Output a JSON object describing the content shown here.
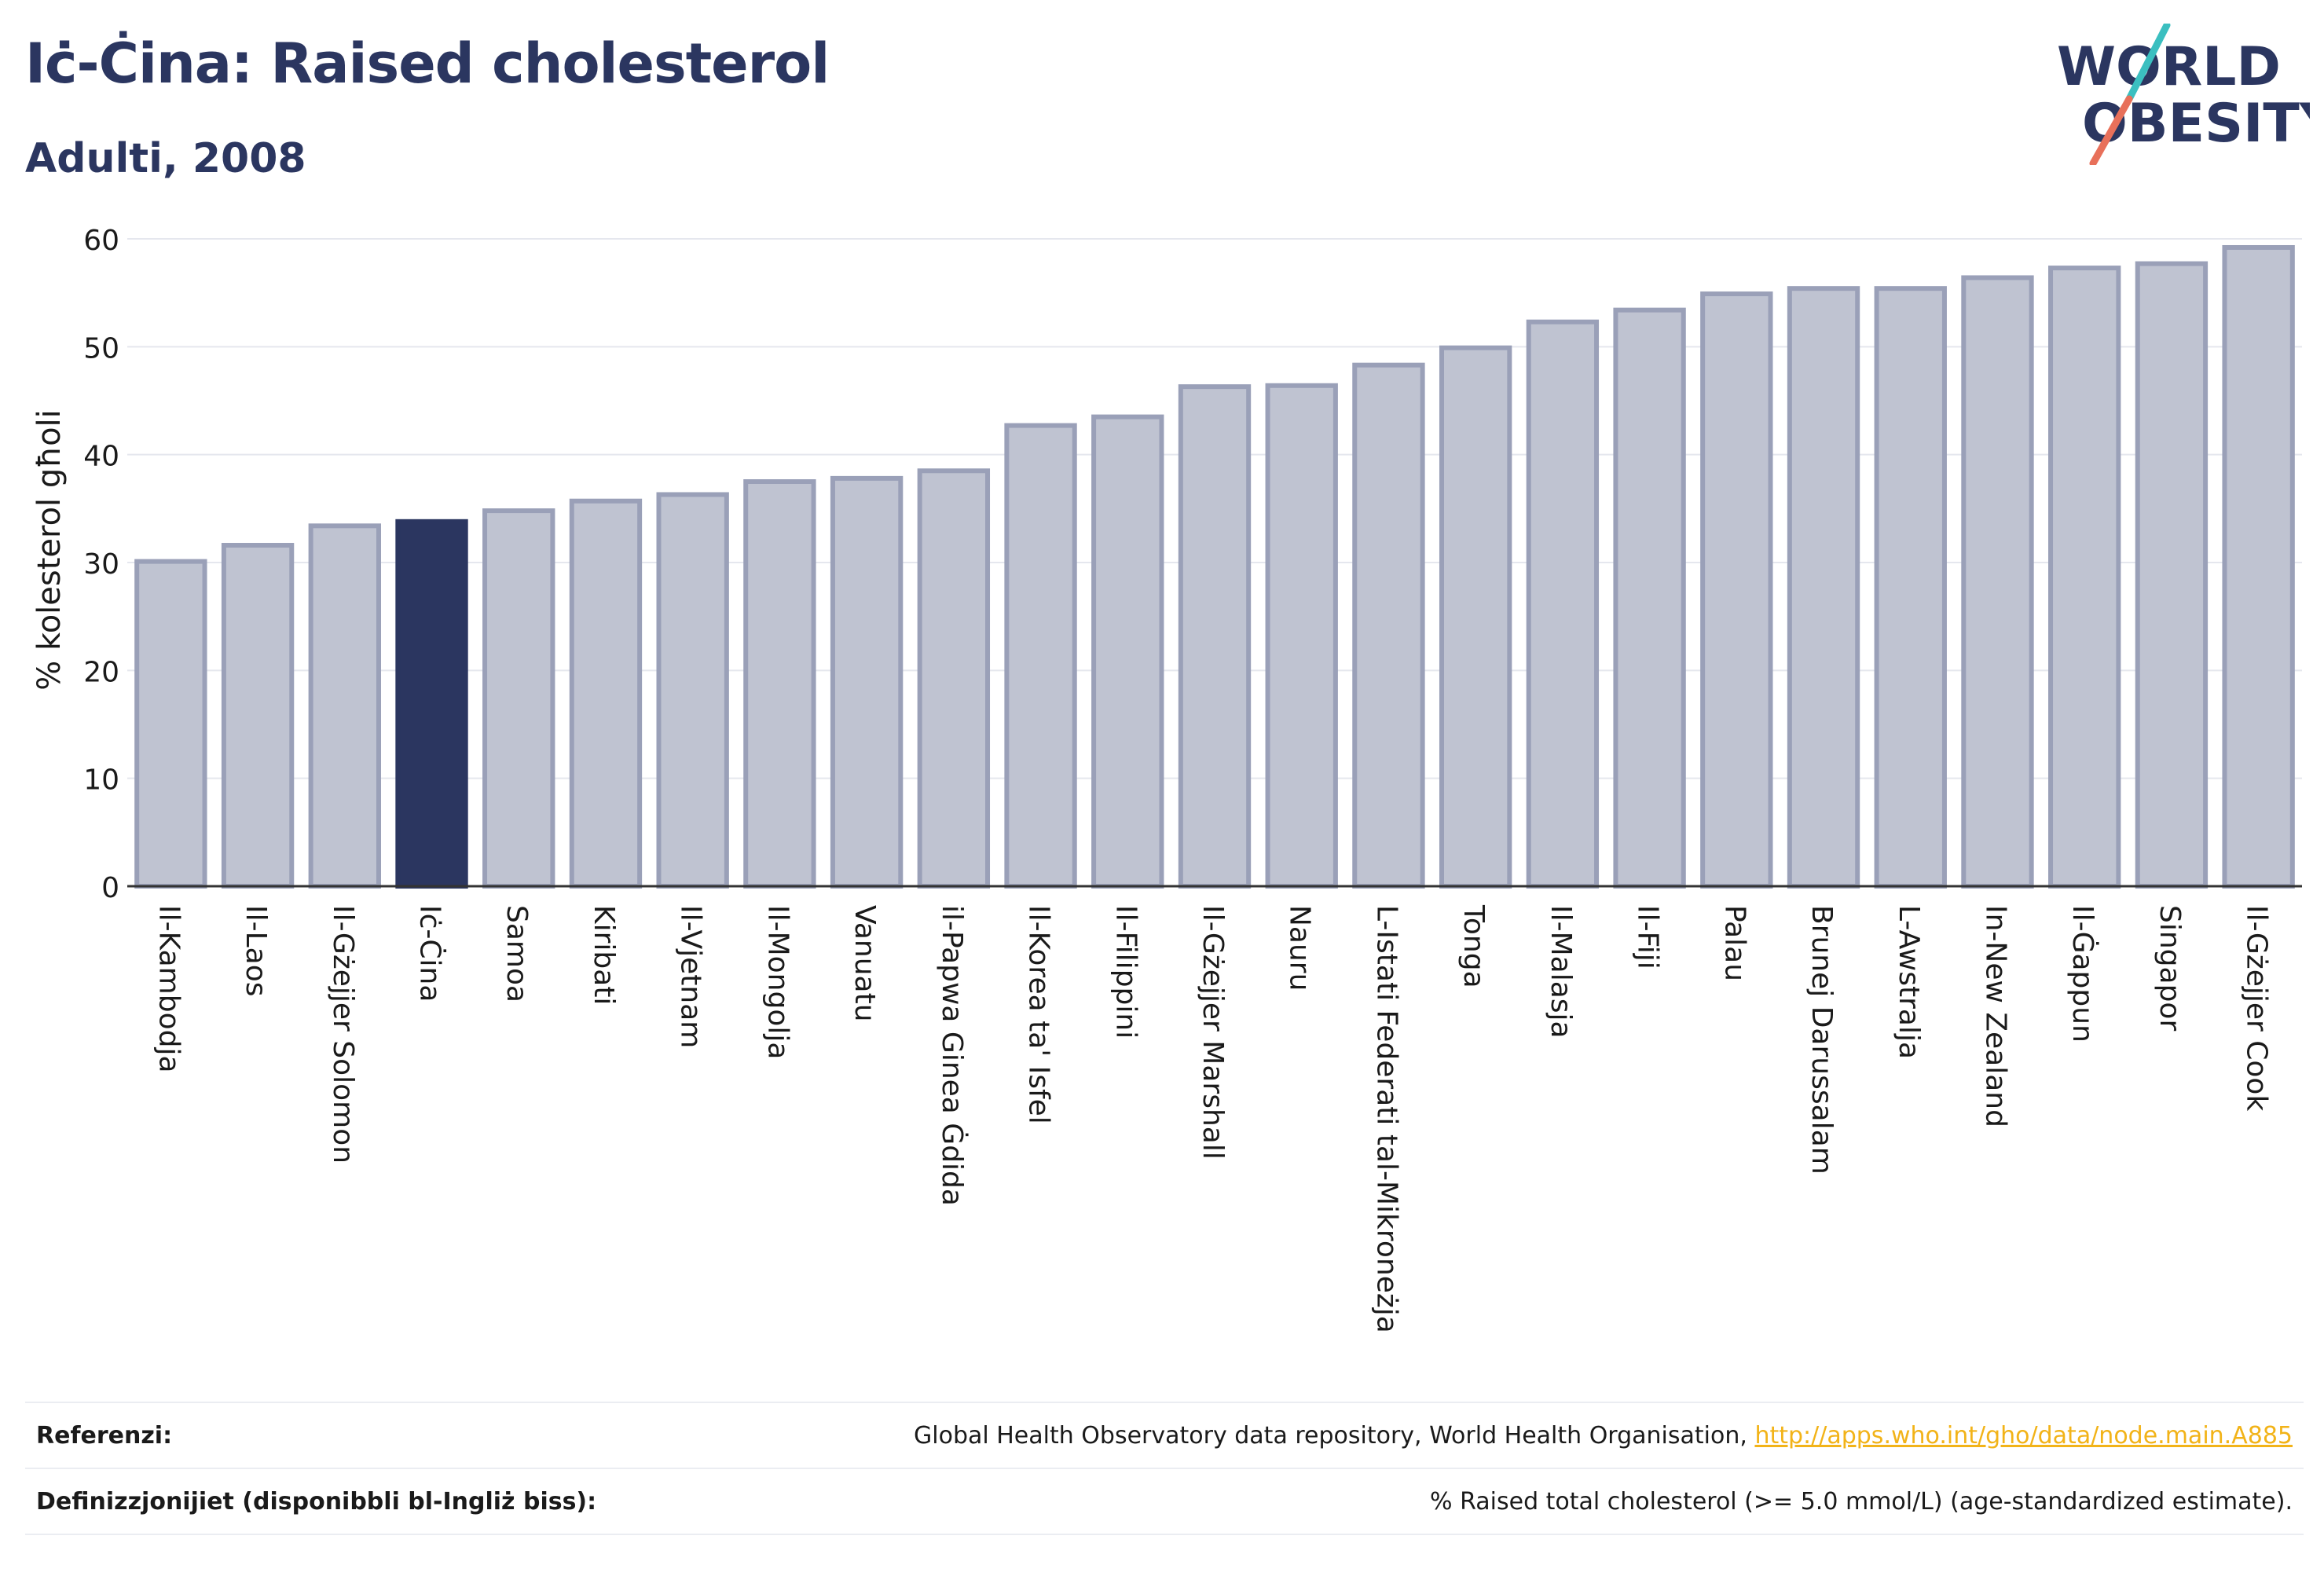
{
  "title": "Iċ-Ċina: Raised cholesterol",
  "subtitle": "Adulti, 2008",
  "logo": {
    "line1": "WORLD",
    "line2": "OBESITY"
  },
  "colors": {
    "highlight": "#2b3660",
    "bar_fill": "#bfc3d1",
    "bar_stroke": "#9aa0b8",
    "grid": "#e5e7ee",
    "link": "#f2b318"
  },
  "chart_data": {
    "type": "bar",
    "ylabel": "% kolesterol għoli",
    "xlabel": "",
    "ylim": [
      0,
      60
    ],
    "yticks": [
      0,
      10,
      20,
      30,
      40,
      50,
      60
    ],
    "grid": true,
    "highlight": "Iċ-Ċina",
    "categories": [
      "Il-Kambodja",
      "Il-Laos",
      "Il-Gżejjer Solomon",
      "Iċ-Ċina",
      "Samoa",
      "Kiribati",
      "Il-Vjetnam",
      "Il-Mongolja",
      "Vanuatu",
      "il-Papwa Ginea Ġdida",
      "Il-Korea ta' Isfel",
      "Il-Filippini",
      "Il-Gżejjer Marshall",
      "Nauru",
      "L-Istati Federati tal-Mikroneżja",
      "Tonga",
      "Il-Malasja",
      "Il-Fiji",
      "Palau",
      "Brunej Darussalam",
      "L-Awstralja",
      "In-New Zealand",
      "Il-Ġappun",
      "Singapor",
      "Il-Gżejjer Cook"
    ],
    "values": [
      30.1,
      31.6,
      33.4,
      33.8,
      34.8,
      35.7,
      36.3,
      37.5,
      37.8,
      38.5,
      42.7,
      43.5,
      46.3,
      46.4,
      48.3,
      49.9,
      52.3,
      53.4,
      54.9,
      55.4,
      55.4,
      56.4,
      57.3,
      57.7,
      59.2
    ]
  },
  "footer": {
    "references_label": "Referenzi:",
    "references_text": "Global Health Observatory data repository, World Health Organisation, ",
    "references_link": "http://apps.who.int/gho/data/node.main.A885",
    "definitions_label": "Definizzjonijiet (disponibbli bl-Ingliż biss):",
    "definitions_text": "% Raised total cholesterol (>= 5.0 mmol/L) (age-standardized estimate)."
  }
}
